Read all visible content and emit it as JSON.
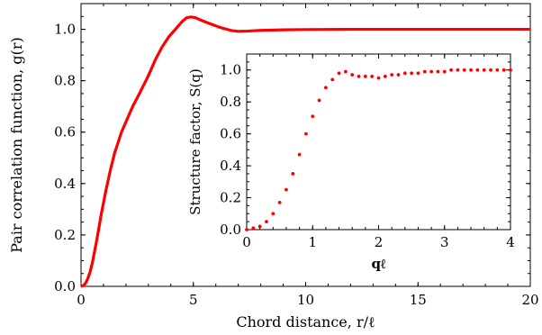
{
  "chart_data": [
    {
      "type": "line",
      "xlabel": "Chord distance, r/ℓ",
      "ylabel": "Pair correlation function, g(r)",
      "xlim": [
        0,
        20
      ],
      "ylim": [
        0,
        1.1
      ],
      "xticks": [
        "0",
        "5",
        "10",
        "15",
        "20"
      ],
      "yticks": [
        "0.0",
        "0.2",
        "0.4",
        "0.6",
        "0.8",
        "1.0"
      ],
      "grid": false,
      "color": "#ff0000",
      "x": [
        0,
        0.1,
        0.2,
        0.3,
        0.4,
        0.5,
        0.7,
        0.9,
        1.1,
        1.3,
        1.5,
        1.8,
        2.0,
        2.3,
        2.6,
        3.0,
        3.3,
        3.6,
        3.9,
        4.2,
        4.5,
        4.7,
        4.9,
        5.1,
        5.3,
        5.5,
        5.8,
        6.1,
        6.4,
        6.7,
        7.0,
        7.4,
        8.0,
        9.0,
        10.0,
        12.0,
        14.0,
        16.0,
        18.0,
        20.0
      ],
      "y": [
        0.0,
        0.003,
        0.012,
        0.03,
        0.055,
        0.09,
        0.18,
        0.28,
        0.37,
        0.45,
        0.52,
        0.6,
        0.64,
        0.7,
        0.75,
        0.82,
        0.88,
        0.93,
        0.97,
        1.0,
        1.03,
        1.045,
        1.048,
        1.045,
        1.037,
        1.03,
        1.02,
        1.01,
        1.002,
        0.995,
        0.992,
        0.993,
        0.996,
        0.998,
        0.999,
        1.0,
        1.0,
        1.0,
        1.0,
        1.0
      ]
    },
    {
      "type": "scatter",
      "xlabel": "qℓ",
      "ylabel": "Structure factor, S(q)",
      "xlim": [
        0,
        4
      ],
      "ylim": [
        0,
        1.1
      ],
      "xticks": [
        "0",
        "1",
        "2",
        "3",
        "4"
      ],
      "yticks": [
        "0.0",
        "0.2",
        "0.4",
        "0.6",
        "0.8",
        "1.0"
      ],
      "grid": false,
      "color": "#ff0000",
      "x": [
        0.0,
        0.1,
        0.2,
        0.3,
        0.4,
        0.5,
        0.6,
        0.7,
        0.8,
        0.9,
        1.0,
        1.1,
        1.2,
        1.3,
        1.4,
        1.5,
        1.6,
        1.7,
        1.8,
        1.9,
        2.0,
        2.1,
        2.2,
        2.3,
        2.4,
        2.5,
        2.6,
        2.7,
        2.8,
        2.9,
        3.0,
        3.1,
        3.2,
        3.3,
        3.4,
        3.5,
        3.6,
        3.7,
        3.8,
        3.9,
        4.0
      ],
      "y": [
        0.0,
        0.01,
        0.02,
        0.05,
        0.1,
        0.17,
        0.25,
        0.35,
        0.47,
        0.6,
        0.71,
        0.81,
        0.89,
        0.94,
        0.98,
        0.99,
        0.97,
        0.96,
        0.96,
        0.96,
        0.95,
        0.96,
        0.97,
        0.97,
        0.98,
        0.98,
        0.98,
        0.99,
        0.99,
        0.99,
        0.99,
        1.0,
        1.0,
        1.0,
        1.0,
        1.0,
        1.0,
        1.0,
        1.0,
        1.0,
        1.0
      ]
    }
  ]
}
